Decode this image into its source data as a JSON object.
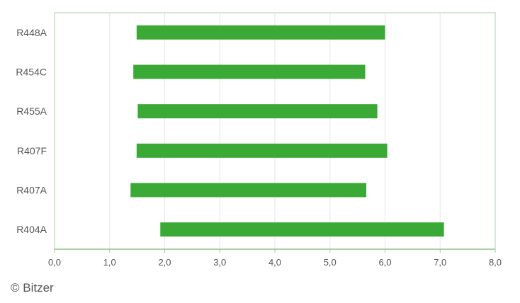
{
  "chart_data": {
    "type": "bar",
    "orientation": "horizontal-range",
    "categories": [
      "R448A",
      "R454C",
      "R455A",
      "R407F",
      "R407A",
      "R404A"
    ],
    "series": [
      {
        "ranges": [
          [
            1.49,
            6.0
          ],
          [
            1.43,
            5.64
          ],
          [
            1.51,
            5.86
          ],
          [
            1.49,
            6.04
          ],
          [
            1.38,
            5.66
          ],
          [
            1.92,
            7.07
          ]
        ]
      }
    ],
    "xlim": [
      0,
      8
    ],
    "xticks": [
      "0,0",
      "1,0",
      "2,0",
      "3,0",
      "4,0",
      "5,0",
      "6,0",
      "7,0",
      "8,0"
    ],
    "grid": true,
    "bar_color": "#3aa935",
    "title": "",
    "xlabel": "",
    "ylabel": ""
  },
  "credit": "© Bitzer"
}
